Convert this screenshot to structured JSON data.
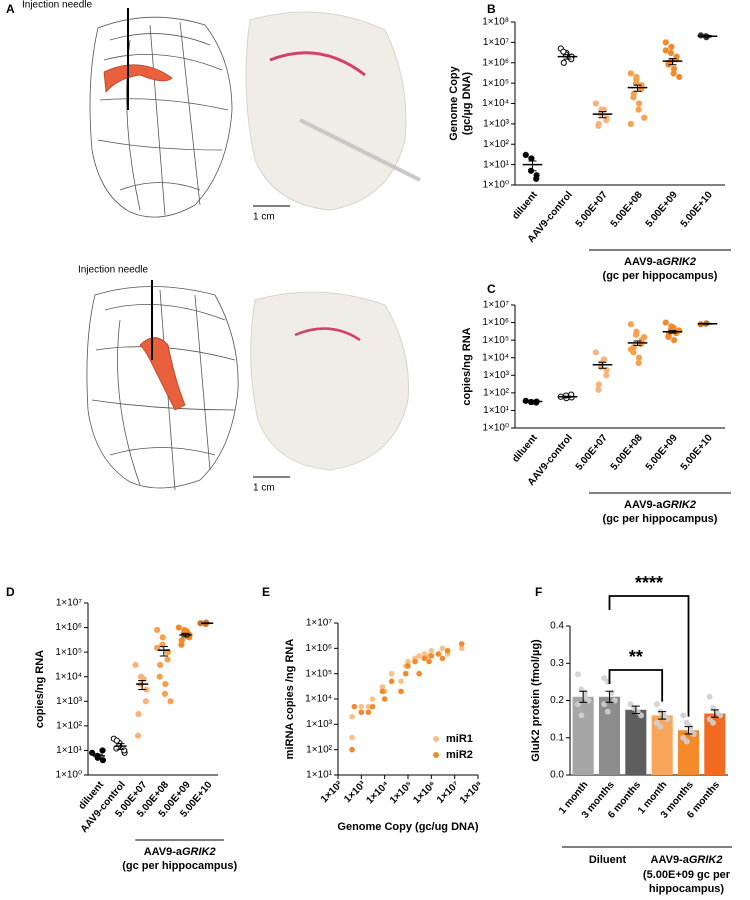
{
  "panel_a": {
    "panel_label": "A",
    "annotations": [
      "Injection needle",
      "1 cm",
      "Injection needle",
      "1 cm"
    ]
  },
  "chart_data": [
    {
      "type": "strip",
      "panel_label": "B",
      "ylabel": [
        "Genome Copy",
        "(gc/µg DNA)"
      ],
      "log_scale": true,
      "ylim": [
        1,
        100000000
      ],
      "yticks": [
        {
          "value": 1,
          "label": "1×10⁰"
        },
        {
          "value": 10,
          "label": "1×10¹"
        },
        {
          "value": 100,
          "label": "1×10²"
        },
        {
          "value": 1000,
          "label": "1×10³"
        },
        {
          "value": 10000,
          "label": "1×10⁴"
        },
        {
          "value": 100000,
          "label": "1×10⁵"
        },
        {
          "value": 1000000,
          "label": "1×10⁶"
        },
        {
          "value": 10000000,
          "label": "1×10⁷"
        },
        {
          "value": 100000000,
          "label": "1×10⁸"
        }
      ],
      "categories": [
        "diluent",
        "AAV9-control",
        "5.00E+07",
        "5.00E+08",
        "5.00E+09",
        "5.00E+10"
      ],
      "colors": [
        "#000000",
        "#000000",
        "#f9b27a",
        "#f7a04e",
        "#f28a2b",
        "#333333"
      ],
      "hollow": [
        false,
        true,
        false,
        false,
        false,
        false
      ],
      "points": [
        [
          30,
          20,
          5,
          3,
          2
        ],
        [
          5000000,
          3000000,
          2500000,
          2000000,
          1500000,
          1000000,
          3500000
        ],
        [
          10000,
          5000,
          3000,
          2000,
          1500,
          1000,
          800,
          5000
        ],
        [
          300000,
          200000,
          100000,
          80000,
          50000,
          30000,
          20000,
          10000,
          5000,
          2000,
          1000,
          150000
        ],
        [
          10000000,
          6000000,
          3000000,
          2000000,
          1500000,
          1000000,
          800000,
          500000,
          300000,
          200000,
          4000000,
          1200000
        ],
        [
          22000000,
          18000000,
          20000000
        ]
      ],
      "means": [
        10,
        2000000,
        3000,
        60000,
        1200000,
        20000000
      ],
      "sems": [
        5,
        500000,
        1000,
        20000,
        400000,
        2000000
      ],
      "group": {
        "prefix": "AAV9-a",
        "italic": "GRIK2",
        "sublabel": "(gc per hippocampus)"
      }
    },
    {
      "type": "strip",
      "panel_label": "C",
      "ylabel": "copies/ng RNA",
      "log_scale": true,
      "ylim": [
        1,
        10000000
      ],
      "yticks": [
        {
          "value": 1,
          "label": "1×10⁰"
        },
        {
          "value": 10,
          "label": "1×10¹"
        },
        {
          "value": 100,
          "label": "1×10²"
        },
        {
          "value": 1000,
          "label": "1×10³"
        },
        {
          "value": 10000,
          "label": "1×10⁴"
        },
        {
          "value": 100000,
          "label": "1×10⁵"
        },
        {
          "value": 1000000,
          "label": "1×10⁶"
        },
        {
          "value": 10000000,
          "label": "1×10⁷"
        }
      ],
      "categories": [
        "diluent",
        "AAV9-control",
        "5.00E+07",
        "5.00E+08",
        "5.00E+09",
        "5.00E+10"
      ],
      "colors": [
        "#000000",
        "#000000",
        "#f9b27a",
        "#f7a04e",
        "#f28a2b",
        "#c9732f"
      ],
      "hollow": [
        false,
        true,
        false,
        false,
        false,
        false
      ],
      "points": [
        [
          35,
          30,
          30,
          32,
          28
        ],
        [
          60,
          50,
          70,
          55,
          80
        ],
        [
          20000,
          5000,
          3000,
          2000,
          1000,
          300,
          150,
          8000
        ],
        [
          800000,
          300000,
          200000,
          100000,
          60000,
          40000,
          20000,
          10000,
          5000,
          150000,
          30000
        ],
        [
          1000000,
          600000,
          400000,
          300000,
          250000,
          200000,
          150000,
          100000,
          500000,
          350000
        ],
        [
          800000,
          900000,
          850000
        ]
      ],
      "means": [
        32,
        60,
        4000,
        70000,
        300000,
        850000
      ],
      "sems": [
        2,
        5,
        1500,
        20000,
        50000,
        50000
      ],
      "group": {
        "prefix": "AAV9-a",
        "italic": "GRIK2",
        "sublabel": "(gc per hippocampus)"
      }
    },
    {
      "type": "strip",
      "panel_label": "D",
      "ylabel": "copies/ng RNA",
      "log_scale": true,
      "ylim": [
        1,
        10000000
      ],
      "yticks": [
        {
          "value": 1,
          "label": "1×10⁰"
        },
        {
          "value": 10,
          "label": "1×10¹"
        },
        {
          "value": 100,
          "label": "1×10²"
        },
        {
          "value": 1000,
          "label": "1×10³"
        },
        {
          "value": 10000,
          "label": "1×10⁴"
        },
        {
          "value": 100000,
          "label": "1×10⁵"
        },
        {
          "value": 1000000,
          "label": "1×10⁶"
        },
        {
          "value": 10000000,
          "label": "1×10⁷"
        }
      ],
      "categories": [
        "diluent",
        "AAV9-control",
        "5.00E+07",
        "5.00E+08",
        "5.00E+09",
        "5.00E+10"
      ],
      "colors": [
        "#000000",
        "#000000",
        "#f9b27a",
        "#f7a04e",
        "#f28a2b",
        "#c9732f"
      ],
      "hollow": [
        false,
        true,
        false,
        false,
        false,
        false
      ],
      "points": [
        [
          8,
          5,
          6,
          4,
          10
        ],
        [
          30,
          20,
          15,
          8,
          10,
          25,
          12
        ],
        [
          30000,
          10000,
          5000,
          3000,
          1000,
          300,
          40,
          8000
        ],
        [
          800000,
          400000,
          200000,
          100000,
          50000,
          30000,
          10000,
          5000,
          2000,
          1000,
          150000
        ],
        [
          1000000,
          800000,
          600000,
          500000,
          400000,
          300000,
          200000,
          700000,
          450000
        ],
        [
          1500000,
          1600000,
          1400000
        ]
      ],
      "means": [
        6,
        15,
        5000,
        120000,
        500000,
        1500000
      ],
      "sems": [
        1,
        4,
        2000,
        50000,
        80000,
        50000
      ],
      "group": {
        "prefix": "AAV9-a",
        "italic": "GRIK2",
        "sublabel": "(gc per hippocampus)"
      }
    },
    {
      "type": "scatter",
      "panel_label": "E",
      "xlabel": "Genome Copy (gc/ug DNA)",
      "ylabel": "miRNA copies /ng RNA",
      "log_scale": true,
      "xlim": [
        100,
        100000000
      ],
      "ylim": [
        10,
        10000000
      ],
      "xticks": [
        {
          "value": 100,
          "label": "1×10²"
        },
        {
          "value": 1000,
          "label": "1×10³"
        },
        {
          "value": 10000,
          "label": "1×10⁴"
        },
        {
          "value": 100000,
          "label": "1×10⁵"
        },
        {
          "value": 1000000,
          "label": "1×10⁶"
        },
        {
          "value": 10000000,
          "label": "1×10⁷"
        },
        {
          "value": 100000000,
          "label": "1×10⁸"
        }
      ],
      "yticks": [
        {
          "value": 10,
          "label": "1×10¹"
        },
        {
          "value": 100,
          "label": "1×10²"
        },
        {
          "value": 1000,
          "label": "1×10³"
        },
        {
          "value": 10000,
          "label": "1×10⁴"
        },
        {
          "value": 100000,
          "label": "1×10⁵"
        },
        {
          "value": 1000000,
          "label": "1×10⁶"
        },
        {
          "value": 10000000,
          "label": "1×10⁷"
        }
      ],
      "series": [
        {
          "name": "miR1",
          "color": "#f9c08a",
          "x": [
            400,
            400,
            1000,
            2000,
            3000,
            8000,
            10000,
            20000,
            50000,
            80000,
            100000,
            200000,
            300000,
            500000,
            800000,
            1000000,
            2000000,
            3000000,
            5000000,
            20000000
          ],
          "values": [
            300,
            2000,
            5000,
            5000,
            10000,
            30000,
            20000,
            100000,
            50000,
            200000,
            300000,
            400000,
            500000,
            600000,
            500000,
            800000,
            600000,
            1000000,
            600000,
            1000000
          ]
        },
        {
          "name": "miR2",
          "color": "#f08a2a",
          "x": [
            400,
            500,
            1000,
            2000,
            3000,
            8000,
            10000,
            20000,
            50000,
            80000,
            100000,
            200000,
            300000,
            500000,
            800000,
            1000000,
            2000000,
            3000000,
            5000000,
            20000000
          ],
          "values": [
            100,
            5000,
            3000,
            3000,
            5000,
            20000,
            10000,
            50000,
            20000,
            100000,
            200000,
            300000,
            100000,
            400000,
            300000,
            500000,
            600000,
            400000,
            800000,
            1500000
          ]
        }
      ]
    },
    {
      "type": "bar",
      "panel_label": "F",
      "ylabel": "GluK2 protein (fmol/µg)",
      "ylim": [
        0,
        0.4
      ],
      "yticks": [
        {
          "value": 0,
          "label": "0.0"
        },
        0.1,
        0.2,
        0.3,
        0.4
      ],
      "categories": [
        "1 month",
        "3 months",
        "6 months",
        "1 month",
        "3 months",
        "6 months"
      ],
      "colors": [
        "#a6a6a6",
        "#8c8c8c",
        "#5e5e5e",
        "#f9a55a",
        "#f58a2a",
        "#f26a1f"
      ],
      "values": [
        0.21,
        0.21,
        0.175,
        0.16,
        0.12,
        0.165
      ],
      "errors": [
        0.015,
        0.015,
        0.01,
        0.01,
        0.01,
        0.01
      ],
      "points": [
        [
          0.27,
          0.23,
          0.21,
          0.2,
          0.19,
          0.16,
          0.22
        ],
        [
          0.26,
          0.25,
          0.22,
          0.2,
          0.19,
          0.17
        ],
        [
          0.19,
          0.18,
          0.17,
          0.16
        ],
        [
          0.19,
          0.17,
          0.16,
          0.15,
          0.14,
          0.13
        ],
        [
          0.16,
          0.14,
          0.12,
          0.11,
          0.1,
          0.09,
          0.13
        ],
        [
          0.21,
          0.18,
          0.17,
          0.16,
          0.15,
          0.14
        ]
      ],
      "groups": [
        {
          "label": "Diluent"
        },
        {
          "prefix": "AAV9-a",
          "italic": "GRIK2",
          "sublabel": [
            "(5.00E+09 gc per",
            "hippocampus)"
          ]
        }
      ],
      "significance": [
        {
          "from": 1,
          "to": 3,
          "label": "**"
        },
        {
          "from": 1,
          "to": 4,
          "label": "****"
        }
      ]
    }
  ]
}
